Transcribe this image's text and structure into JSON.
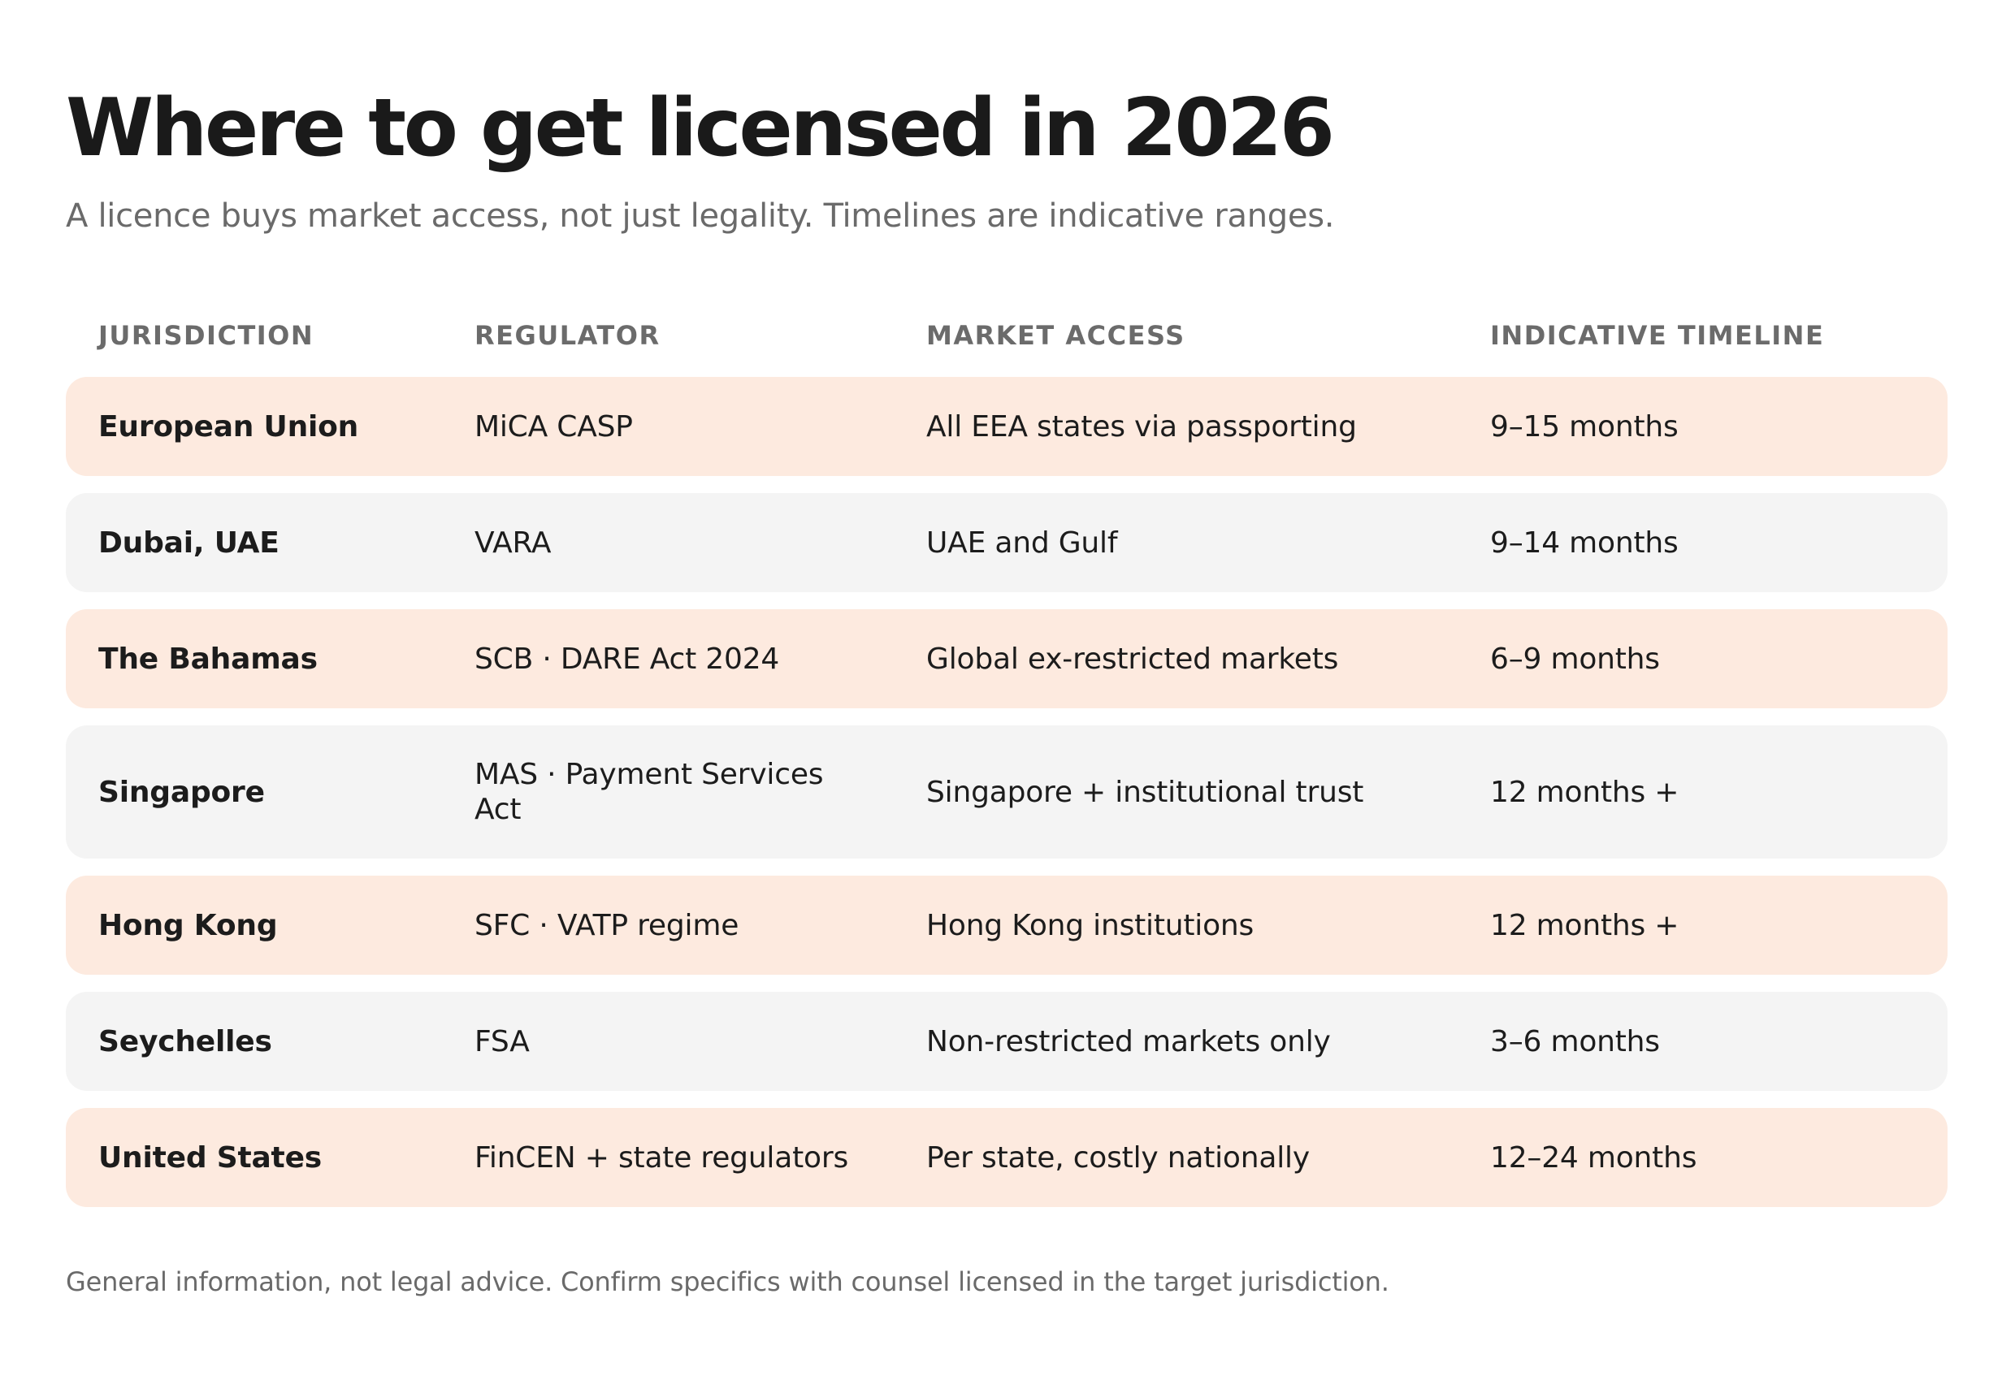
{
  "title": "Where to get licensed in 2026",
  "subtitle": "A licence buys market access, not just legality. Timelines are indicative ranges.",
  "table": {
    "headers": {
      "jurisdiction": "JURISDICTION",
      "regulator": "REGULATOR",
      "market_access": "MARKET ACCESS",
      "timeline": "INDICATIVE TIMELINE"
    },
    "rows": [
      {
        "jurisdiction": "European Union",
        "regulator": "MiCA CASP",
        "market_access": "All EEA states via passporting",
        "timeline": "9–15 months",
        "style": "tinted"
      },
      {
        "jurisdiction": "Dubai, UAE",
        "regulator": "VARA",
        "market_access": "UAE and Gulf",
        "timeline": "9–14 months",
        "style": "plain"
      },
      {
        "jurisdiction": "The Bahamas",
        "regulator": "SCB · DARE Act 2024",
        "market_access": "Global ex-restricted markets",
        "timeline": "6–9 months",
        "style": "tinted"
      },
      {
        "jurisdiction": "Singapore",
        "regulator": "MAS · Payment Services Act",
        "market_access": "Singapore + institutional trust",
        "timeline": "12 months +",
        "style": "plain"
      },
      {
        "jurisdiction": "Hong Kong",
        "regulator": "SFC · VATP regime",
        "market_access": "Hong Kong institutions",
        "timeline": "12 months +",
        "style": "tinted"
      },
      {
        "jurisdiction": "Seychelles",
        "regulator": "FSA",
        "market_access": "Non-restricted markets only",
        "timeline": "3–6 months",
        "style": "plain"
      },
      {
        "jurisdiction": "United States",
        "regulator": "FinCEN + state regulators",
        "market_access": "Per state, costly nationally",
        "timeline": "12–24 months",
        "style": "tinted"
      }
    ]
  },
  "colors": {
    "tinted_row": "#fdeadf",
    "plain_row": "#f4f4f4",
    "header_text": "#6b6b6b",
    "muted_text": "#6a6a6a"
  },
  "footnote": "General information, not legal advice. Confirm specifics with counsel licensed in the target jurisdiction."
}
